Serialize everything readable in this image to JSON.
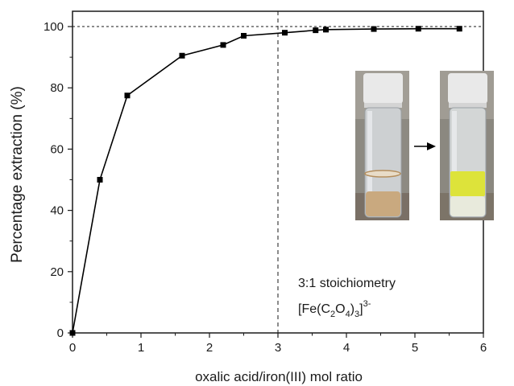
{
  "chart_data": {
    "type": "line",
    "xlabel": "oxalic acid/iron(III) mol ratio",
    "ylabel": "Percentage extraction (%)",
    "xlim": [
      0,
      6
    ],
    "ylim": [
      0,
      105
    ],
    "x_ticks": [
      "0",
      "1",
      "2",
      "3",
      "4",
      "5",
      "6"
    ],
    "y_ticks": [
      "0",
      "20",
      "40",
      "60",
      "80",
      "100"
    ],
    "grid": false,
    "marker": "square",
    "series": [
      {
        "x": [
          0,
          0.4,
          0.8,
          1.6,
          2.2,
          2.5,
          3.1,
          3.55,
          3.7,
          4.4,
          5.05,
          5.65
        ],
        "y": [
          0,
          50,
          77.5,
          90.5,
          94,
          97,
          98,
          98.8,
          99,
          99.2,
          99.3,
          99.3
        ]
      }
    ],
    "reference_lines": [
      {
        "orientation": "horizontal",
        "value": 100,
        "style": "dashed"
      },
      {
        "orientation": "vertical",
        "value": 3,
        "style": "dashed"
      }
    ],
    "annotation": {
      "line1": "3:1 stoichiometry",
      "formula": {
        "base1": "[Fe(C",
        "sub1": "2",
        "base2": "O",
        "sub2": "4",
        "base3": ")",
        "sub3": "3",
        "base4": "]",
        "sup": "3-"
      }
    },
    "inset": {
      "photo_before_liquid": "#c9a97f",
      "photo_after_liquid": "#dde33a",
      "cap_color": "#e9e9e9"
    }
  }
}
